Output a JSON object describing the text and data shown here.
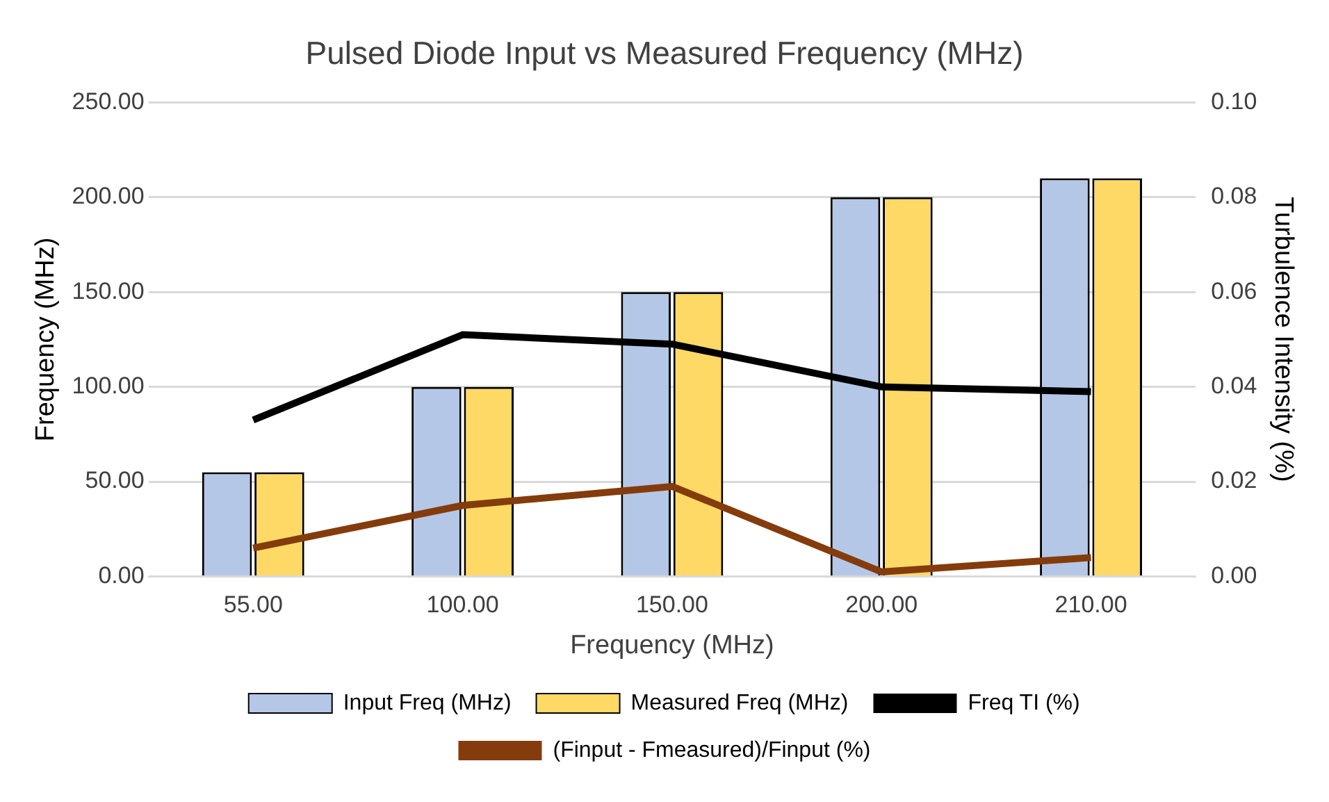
{
  "chart_data": {
    "type": "bar",
    "title": "Pulsed Diode Input vs Measured Frequency (MHz)",
    "xlabel": "Frequency (MHz)",
    "ylabel": "Frequency (MHz)",
    "y2label": "Turbulence Intensity (%)",
    "categories": [
      "55.00",
      "100.00",
      "150.00",
      "200.00",
      "210.00"
    ],
    "series": [
      {
        "name": "Input Freq (MHz)",
        "color": "#b4c7e7",
        "values": [
          55,
          100,
          150,
          200,
          210
        ]
      },
      {
        "name": "Measured Freq (MHz)",
        "color": "#ffd966",
        "values": [
          55,
          100,
          150,
          200,
          210
        ]
      },
      {
        "name": "Freq TI (%)",
        "type": "line",
        "axis": "y2",
        "color": "#000000",
        "values": [
          0.033,
          0.051,
          0.049,
          0.04,
          0.039
        ]
      },
      {
        "name": "(Finput - Fmeasured)/Finput (%)",
        "type": "line",
        "axis": "y2",
        "color": "#843c0c",
        "values": [
          0.006,
          0.015,
          0.019,
          0.001,
          0.004
        ]
      }
    ],
    "ylim": [
      0,
      250
    ],
    "yticks": [
      {
        "value": 0,
        "label": "0.00"
      },
      {
        "value": 50,
        "label": "50.00"
      },
      {
        "value": 100,
        "label": "100.00"
      },
      {
        "value": 150,
        "label": "150.00"
      },
      {
        "value": 200,
        "label": "200.00"
      },
      {
        "value": 250,
        "label": "250.00"
      }
    ],
    "y2lim": [
      0,
      0.1
    ],
    "y2ticks": [
      {
        "value": 0,
        "label": "0.00"
      },
      {
        "value": 0.02,
        "label": "0.02"
      },
      {
        "value": 0.04,
        "label": "0.04"
      },
      {
        "value": 0.06,
        "label": "0.06"
      },
      {
        "value": 0.08,
        "label": "0.08"
      },
      {
        "value": 0.1,
        "label": "0.10"
      }
    ],
    "grid": "y",
    "legend": "bottom",
    "marker": "none",
    "line_style": "solid"
  }
}
